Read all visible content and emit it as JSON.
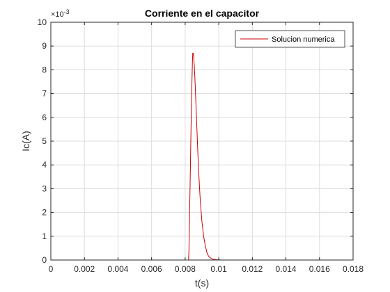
{
  "chart_data": {
    "type": "line",
    "title": "Corriente en el capacitor",
    "xlabel": "t(s)",
    "ylabel": "Ic(A)",
    "xlim": [
      0,
      0.018
    ],
    "ylim": [
      0,
      0.01
    ],
    "y_exponent_label": "×10",
    "y_exponent_power": "-3",
    "x_ticks": [
      "0",
      "0.002",
      "0.004",
      "0.006",
      "0.008",
      "0.01",
      "0.012",
      "0.014",
      "0.016",
      "0.018"
    ],
    "x_tick_values": [
      0,
      0.002,
      0.004,
      0.006,
      0.008,
      0.01,
      0.012,
      0.014,
      0.016,
      0.018
    ],
    "y_ticks": [
      "0",
      "1",
      "2",
      "3",
      "4",
      "5",
      "6",
      "7",
      "8",
      "9",
      "10"
    ],
    "y_tick_values": [
      0,
      0.001,
      0.002,
      0.003,
      0.004,
      0.005,
      0.006,
      0.007,
      0.008,
      0.009,
      0.01
    ],
    "grid": true,
    "legend_position": "top-right",
    "series": [
      {
        "name": "Solucion numerica",
        "color": "#cc0000",
        "x": [
          0,
          0.0082,
          0.00822,
          0.00825,
          0.0083,
          0.00835,
          0.0084,
          0.00843,
          0.00845,
          0.00848,
          0.0085,
          0.00855,
          0.0086,
          0.00865,
          0.0087,
          0.00875,
          0.0088,
          0.00885,
          0.0089,
          0.009,
          0.0091,
          0.0092,
          0.0093,
          0.0094,
          0.0096,
          0.0099,
          0.0102,
          0.0168
        ],
        "y": [
          0,
          0,
          0.0003,
          0.0014,
          0.0034,
          0.0056,
          0.0074,
          0.0083,
          0.0087,
          0.0087,
          0.0086,
          0.0081,
          0.0073,
          0.0064,
          0.0055,
          0.0046,
          0.0038,
          0.0031,
          0.0025,
          0.0016,
          0.001,
          0.0006,
          0.0003,
          0.00015,
          4e-05,
          1e-05,
          0,
          0
        ]
      }
    ]
  }
}
